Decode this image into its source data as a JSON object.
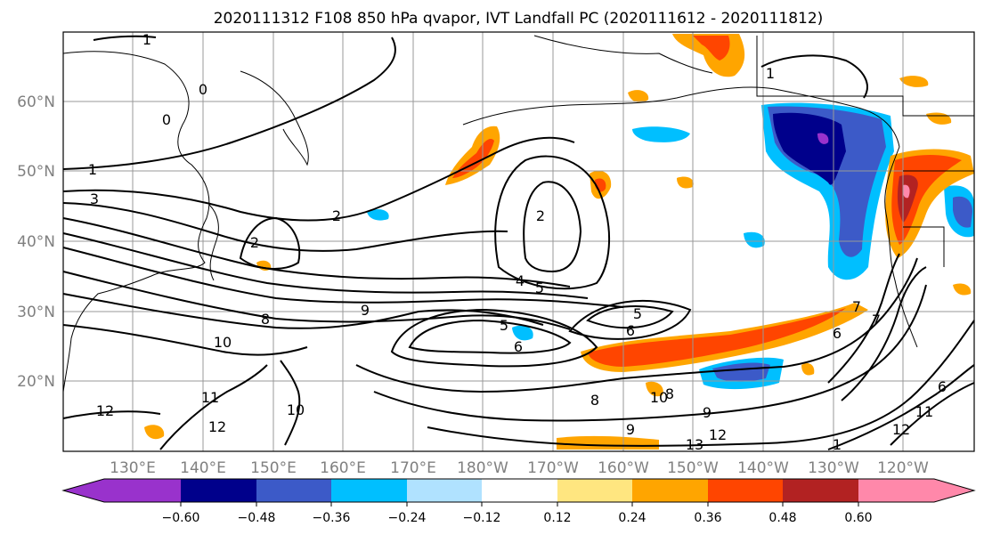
{
  "title": "2020111312 F108 850 hPa qvapor, IVT Landfall PC (2020111612 - 2020111812)",
  "lat_labels": [
    "60°N",
    "50°N",
    "40°N",
    "30°N",
    "20°N"
  ],
  "lon_labels": [
    "130°E",
    "140°E",
    "150°E",
    "160°E",
    "170°E",
    "180°W",
    "170°W",
    "160°W",
    "150°W",
    "140°W",
    "130°W",
    "120°W"
  ],
  "colorbar": {
    "tick_labels": [
      "−0.60",
      "−0.48",
      "−0.36",
      "−0.24",
      "−0.12",
      "0.12",
      "0.24",
      "0.36",
      "0.48",
      "0.60"
    ],
    "colors": [
      "#9932cc",
      "#00008b",
      "#3c5ac8",
      "#00bfff",
      "#b0e2ff",
      "#ffffff",
      "#ffe680",
      "#ffa500",
      "#ff4500",
      "#b22222",
      "#ff88aa"
    ]
  },
  "contour_labels": [
    "1",
    "1",
    "0",
    "0",
    "1",
    "3",
    "2",
    "2",
    "2",
    "4",
    "5",
    "5",
    "6",
    "8",
    "9",
    "10",
    "6",
    "5",
    "6",
    "12",
    "11",
    "12",
    "10",
    "8",
    "10",
    "9",
    "9",
    "8",
    "13",
    "12",
    "7",
    "7",
    "6",
    "12",
    "11",
    "1"
  ]
}
